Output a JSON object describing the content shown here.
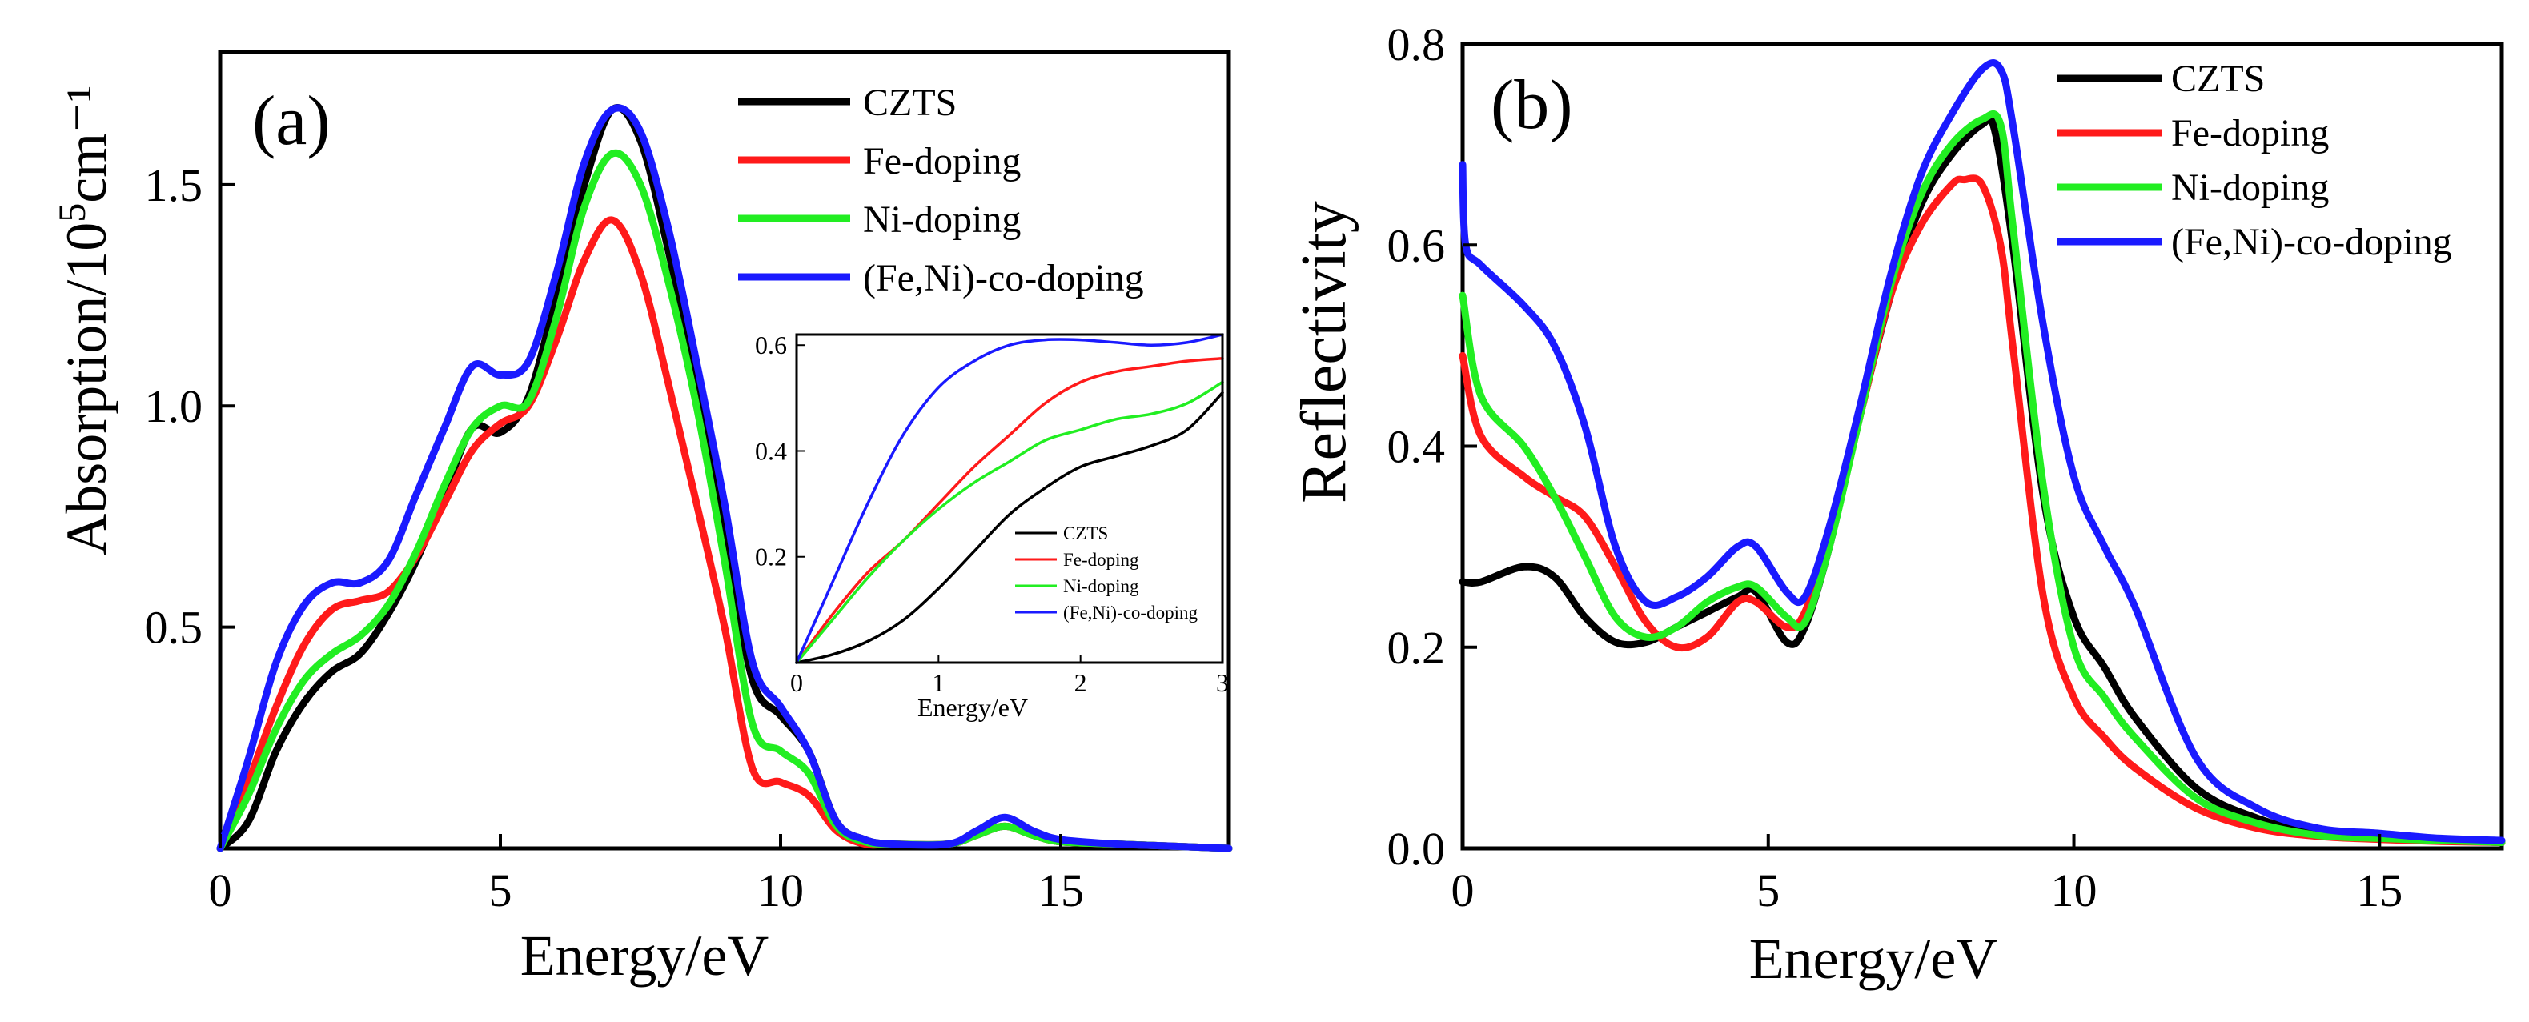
{
  "colors": {
    "CZTS": "#000000",
    "Fe-doping": "#ff1a1a",
    "Ni-doping": "#22ee22",
    "(Fe,Ni)-co-doping": "#1a1aff"
  },
  "chart_data": [
    {
      "panel_label": "(a)",
      "type": "line",
      "xlabel": "Energy/eV",
      "ylabel_parts": {
        "pre": "Absorption/10",
        "sup": "5",
        "post": "cm⁻¹"
      },
      "xlim": [
        0,
        18
      ],
      "ylim": [
        0,
        1.8
      ],
      "xticks": [
        0,
        5,
        10,
        15
      ],
      "yticks": [
        0.5,
        1.0,
        1.5
      ],
      "ytick_labels": [
        "0.5",
        "1.0",
        "1.5"
      ],
      "legend": [
        "CZTS",
        "Fe-doping",
        "Ni-doping",
        "(Fe,Ni)-co-doping"
      ],
      "legend_position": "top-right",
      "series": [
        {
          "name": "CZTS",
          "x": [
            0,
            0.5,
            1,
            1.5,
            2,
            2.5,
            3,
            3.5,
            4,
            4.5,
            5,
            5.5,
            6,
            6.5,
            7,
            7.5,
            8,
            8.5,
            9,
            9.5,
            10,
            10.5,
            11,
            11.5,
            12,
            13,
            13.5,
            14,
            14.5,
            15,
            16,
            17,
            18
          ],
          "y": [
            0,
            0.06,
            0.22,
            0.33,
            0.4,
            0.44,
            0.53,
            0.65,
            0.8,
            0.95,
            0.94,
            1.02,
            1.25,
            1.5,
            1.67,
            1.6,
            1.35,
            1.05,
            0.72,
            0.38,
            0.3,
            0.22,
            0.06,
            0.02,
            0.01,
            0.01,
            0.03,
            0.05,
            0.03,
            0.015,
            0.01,
            0.005,
            0
          ]
        },
        {
          "name": "Fe-doping",
          "x": [
            0,
            0.5,
            1,
            1.5,
            2,
            2.5,
            3,
            3.5,
            4,
            4.5,
            5,
            5.5,
            6,
            6.5,
            7,
            7.5,
            8,
            8.5,
            9,
            9.5,
            10,
            10.5,
            11,
            11.5,
            12,
            13,
            13.5,
            14,
            14.5,
            15,
            16,
            17,
            18
          ],
          "y": [
            0,
            0.15,
            0.32,
            0.46,
            0.54,
            0.56,
            0.58,
            0.66,
            0.78,
            0.9,
            0.96,
            1.0,
            1.15,
            1.33,
            1.42,
            1.3,
            1.05,
            0.78,
            0.5,
            0.18,
            0.15,
            0.12,
            0.04,
            0.01,
            0.01,
            0.01,
            0.03,
            0.05,
            0.03,
            0.015,
            0.01,
            0.005,
            0
          ]
        },
        {
          "name": "Ni-doping",
          "x": [
            0,
            0.5,
            1,
            1.5,
            2,
            2.5,
            3,
            3.5,
            4,
            4.5,
            5,
            5.5,
            6,
            6.5,
            7,
            7.5,
            8,
            8.5,
            9,
            9.5,
            10,
            10.5,
            11,
            11.5,
            12,
            13,
            13.5,
            14,
            14.5,
            15,
            16,
            17,
            18
          ],
          "y": [
            0,
            0.12,
            0.27,
            0.38,
            0.44,
            0.48,
            0.55,
            0.67,
            0.82,
            0.95,
            1.0,
            1.01,
            1.2,
            1.45,
            1.57,
            1.5,
            1.28,
            1.0,
            0.65,
            0.28,
            0.22,
            0.17,
            0.05,
            0.015,
            0.01,
            0.01,
            0.03,
            0.05,
            0.03,
            0.015,
            0.01,
            0.005,
            0
          ]
        },
        {
          "name": "(Fe,Ni)-co-doping",
          "x": [
            0,
            0.5,
            1,
            1.5,
            2,
            2.5,
            3,
            3.5,
            4,
            4.5,
            5,
            5.5,
            6,
            6.5,
            7,
            7.5,
            8,
            8.5,
            9,
            9.5,
            10,
            10.5,
            11,
            11.5,
            12,
            13,
            13.5,
            14,
            14.5,
            15,
            16,
            17,
            18
          ],
          "y": [
            0,
            0.2,
            0.42,
            0.55,
            0.6,
            0.6,
            0.65,
            0.8,
            0.95,
            1.09,
            1.07,
            1.1,
            1.3,
            1.55,
            1.67,
            1.62,
            1.4,
            1.1,
            0.78,
            0.42,
            0.32,
            0.22,
            0.06,
            0.02,
            0.01,
            0.01,
            0.04,
            0.07,
            0.04,
            0.02,
            0.01,
            0.005,
            0
          ]
        }
      ],
      "inset": {
        "type": "line",
        "xlabel": "Energy/eV",
        "xlim": [
          0,
          3
        ],
        "ylim": [
          0,
          0.62
        ],
        "xticks": [
          0,
          1,
          2,
          3
        ],
        "yticks": [
          0.2,
          0.4,
          0.6
        ],
        "ytick_labels": [
          "0.2",
          "0.4",
          "0.6"
        ],
        "legend": [
          "CZTS",
          "Fe-doping",
          "Ni-doping",
          "(Fe,Ni)-co-doping"
        ],
        "legend_position": "bottom-right",
        "series": [
          {
            "name": "CZTS",
            "x": [
              0,
              0.25,
              0.5,
              0.75,
              1,
              1.25,
              1.5,
              1.75,
              2,
              2.25,
              2.5,
              2.75,
              3
            ],
            "y": [
              0,
              0.015,
              0.04,
              0.08,
              0.14,
              0.21,
              0.28,
              0.33,
              0.37,
              0.39,
              0.41,
              0.44,
              0.51
            ]
          },
          {
            "name": "Fe-doping",
            "x": [
              0,
              0.25,
              0.5,
              0.75,
              1,
              1.25,
              1.5,
              1.75,
              2,
              2.25,
              2.5,
              2.75,
              3
            ],
            "y": [
              0,
              0.09,
              0.17,
              0.23,
              0.3,
              0.37,
              0.43,
              0.49,
              0.53,
              0.55,
              0.56,
              0.57,
              0.575
            ]
          },
          {
            "name": "Ni-doping",
            "x": [
              0,
              0.25,
              0.5,
              0.75,
              1,
              1.25,
              1.5,
              1.75,
              2,
              2.25,
              2.5,
              2.75,
              3
            ],
            "y": [
              0,
              0.08,
              0.16,
              0.23,
              0.29,
              0.34,
              0.38,
              0.42,
              0.44,
              0.46,
              0.47,
              0.49,
              0.53
            ]
          },
          {
            "name": "(Fe,Ni)-co-doping",
            "x": [
              0,
              0.25,
              0.5,
              0.75,
              1,
              1.25,
              1.5,
              1.75,
              2,
              2.25,
              2.5,
              2.75,
              3
            ],
            "y": [
              0,
              0.15,
              0.3,
              0.43,
              0.52,
              0.57,
              0.6,
              0.61,
              0.61,
              0.605,
              0.6,
              0.605,
              0.62
            ]
          }
        ]
      }
    },
    {
      "panel_label": "(b)",
      "type": "line",
      "xlabel": "Energy/eV",
      "ylabel": "Reflectivity",
      "xlim": [
        0,
        17
      ],
      "ylim": [
        0,
        0.8
      ],
      "xticks": [
        0,
        5,
        10,
        15
      ],
      "yticks": [
        0.0,
        0.2,
        0.4,
        0.6,
        0.8
      ],
      "ytick_labels": [
        "0.0",
        "0.2",
        "0.4",
        "0.6",
        "0.8"
      ],
      "legend": [
        "CZTS",
        "Fe-doping",
        "Ni-doping",
        "(Fe,Ni)-co-doping"
      ],
      "legend_position": "top-right",
      "series": [
        {
          "name": "CZTS",
          "x": [
            0,
            0.3,
            1,
            1.5,
            2,
            2.5,
            3,
            3.5,
            4,
            4.5,
            4.8,
            5.3,
            5.6,
            6,
            6.5,
            7,
            7.5,
            8,
            8.5,
            8.7,
            9,
            9.5,
            10,
            10.5,
            11,
            12,
            13,
            14,
            15,
            16,
            17
          ],
          "y": [
            0.265,
            0.265,
            0.28,
            0.27,
            0.23,
            0.205,
            0.205,
            0.22,
            0.235,
            0.25,
            0.255,
            0.205,
            0.22,
            0.3,
            0.43,
            0.55,
            0.64,
            0.69,
            0.72,
            0.715,
            0.6,
            0.35,
            0.23,
            0.18,
            0.13,
            0.06,
            0.03,
            0.015,
            0.01,
            0.008,
            0.006
          ]
        },
        {
          "name": "Fe-doping",
          "x": [
            0,
            0.3,
            1,
            1.5,
            2,
            2.5,
            3,
            3.5,
            4,
            4.5,
            4.8,
            5.3,
            5.6,
            6,
            6.5,
            7,
            7.5,
            8,
            8.2,
            8.5,
            8.8,
            9,
            9.5,
            10,
            10.5,
            11,
            12,
            13,
            14,
            15,
            16,
            17
          ],
          "y": [
            0.49,
            0.41,
            0.37,
            0.35,
            0.33,
            0.28,
            0.225,
            0.2,
            0.21,
            0.245,
            0.245,
            0.22,
            0.235,
            0.31,
            0.43,
            0.55,
            0.62,
            0.66,
            0.665,
            0.66,
            0.6,
            0.5,
            0.25,
            0.15,
            0.11,
            0.08,
            0.04,
            0.02,
            0.012,
            0.009,
            0.007,
            0.006
          ]
        },
        {
          "name": "Ni-doping",
          "x": [
            0,
            0.3,
            1,
            1.5,
            2,
            2.5,
            3,
            3.5,
            4,
            4.5,
            4.8,
            5.3,
            5.6,
            6,
            6.5,
            7,
            7.5,
            8,
            8.5,
            8.8,
            9,
            9.5,
            10,
            10.5,
            11,
            12,
            13,
            14,
            15,
            16,
            17
          ],
          "y": [
            0.55,
            0.45,
            0.4,
            0.35,
            0.29,
            0.23,
            0.21,
            0.22,
            0.245,
            0.26,
            0.26,
            0.23,
            0.225,
            0.3,
            0.43,
            0.56,
            0.65,
            0.7,
            0.725,
            0.72,
            0.62,
            0.36,
            0.2,
            0.15,
            0.11,
            0.05,
            0.025,
            0.013,
            0.01,
            0.008,
            0.006
          ]
        },
        {
          "name": "(Fe,Ni)-co-doping",
          "x": [
            0,
            0.05,
            0.3,
            1,
            1.5,
            2,
            2.5,
            3,
            3.5,
            4,
            4.5,
            4.8,
            5.3,
            5.6,
            6,
            6.5,
            7,
            7.5,
            8,
            8.5,
            8.8,
            9,
            9.5,
            10,
            10.5,
            11,
            12,
            13,
            14,
            15,
            16,
            17
          ],
          "y": [
            0.68,
            0.6,
            0.58,
            0.54,
            0.5,
            0.42,
            0.3,
            0.245,
            0.25,
            0.27,
            0.3,
            0.3,
            0.255,
            0.25,
            0.32,
            0.44,
            0.57,
            0.67,
            0.73,
            0.775,
            0.775,
            0.72,
            0.52,
            0.37,
            0.3,
            0.24,
            0.09,
            0.04,
            0.02,
            0.015,
            0.01,
            0.008
          ]
        }
      ]
    }
  ]
}
